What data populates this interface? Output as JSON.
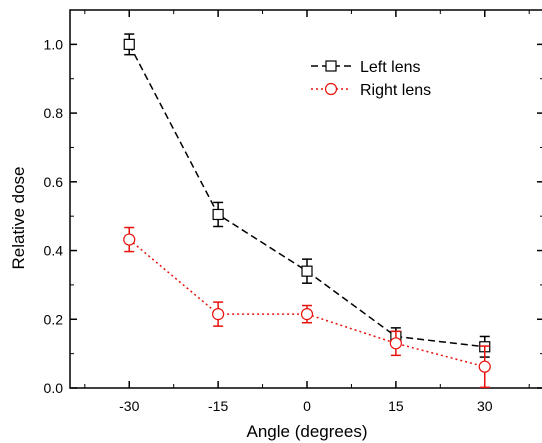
{
  "chart_data": {
    "type": "line",
    "xlabel": "Angle (degrees)",
    "ylabel": "Relative dose",
    "x": [
      -30,
      -15,
      0,
      15,
      30
    ],
    "xlim": [
      -40,
      40
    ],
    "ylim": [
      0,
      1.1
    ],
    "xticks": [
      -30,
      -15,
      0,
      15,
      30
    ],
    "xtick_labels": [
      "-30",
      "-15",
      "0",
      "15",
      "30"
    ],
    "yticks": [
      0.0,
      0.2,
      0.4,
      0.6,
      0.8,
      1.0
    ],
    "ytick_labels": [
      "0.0",
      "0.2",
      "0.4",
      "0.6",
      "0.8",
      "1.0"
    ],
    "grid": false,
    "legend_position": "top-right",
    "series": [
      {
        "name": "Left lens",
        "values": [
          1.0,
          0.505,
          0.34,
          0.15,
          0.12
        ],
        "errors": [
          0.03,
          0.035,
          0.035,
          0.025,
          0.03
        ],
        "color": "#000000",
        "line_style": "dashed",
        "marker": "square"
      },
      {
        "name": "Right lens",
        "values": [
          0.432,
          0.215,
          0.215,
          0.13,
          0.062
        ],
        "errors": [
          0.035,
          0.035,
          0.025,
          0.035,
          0.06
        ],
        "color": "#e8120c",
        "line_style": "dotted",
        "marker": "circle"
      }
    ]
  }
}
